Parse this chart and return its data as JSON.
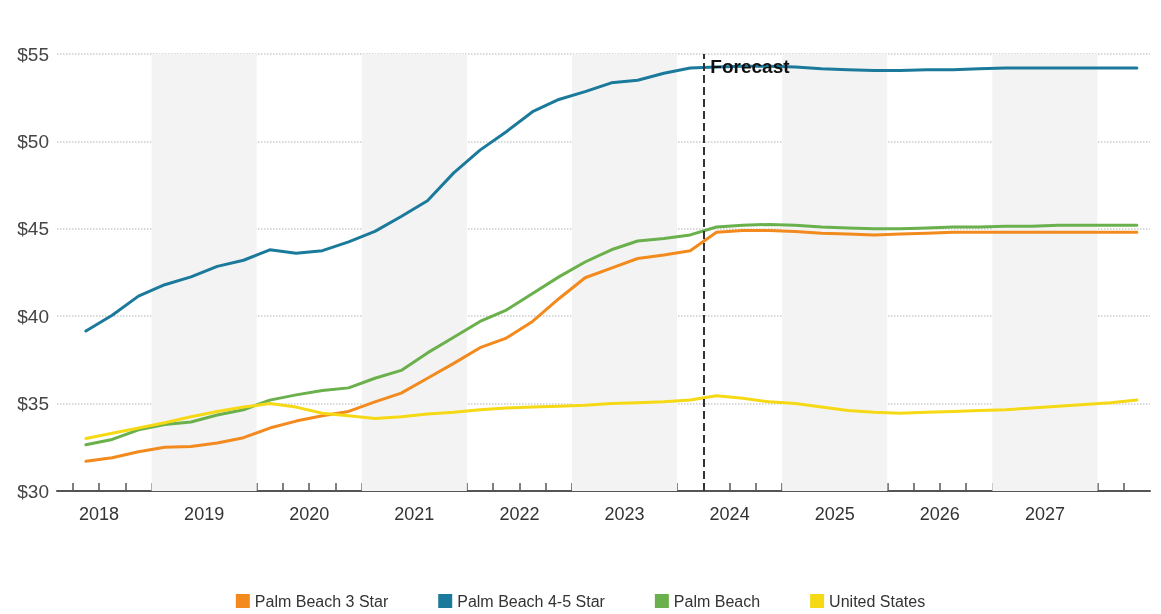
{
  "chart_data": {
    "type": "line",
    "x": [
      2018.375,
      2018.625,
      2018.875,
      2019.125,
      2019.375,
      2019.625,
      2019.875,
      2020.125,
      2020.375,
      2020.625,
      2020.875,
      2021.125,
      2021.375,
      2021.625,
      2021.875,
      2022.125,
      2022.375,
      2022.625,
      2022.875,
      2023.125,
      2023.375,
      2023.625,
      2023.875,
      2024.125,
      2024.375,
      2024.625,
      2024.875,
      2025.125,
      2025.375,
      2025.625,
      2025.875,
      2026.125,
      2026.375,
      2026.625,
      2026.875,
      2027.125,
      2027.375,
      2027.625,
      2027.875,
      2028.125,
      2028.375
    ],
    "series": [
      {
        "name": "Palm Beach 3 Star",
        "color": "#f28a1e",
        "values": [
          31.7,
          31.9,
          32.25,
          32.5,
          32.55,
          32.75,
          33.05,
          33.6,
          34.0,
          34.3,
          34.55,
          35.1,
          35.6,
          36.45,
          37.3,
          38.2,
          38.75,
          39.7,
          41.0,
          42.2,
          42.75,
          43.3,
          43.5,
          43.75,
          44.8,
          44.9,
          44.9,
          44.85,
          44.75,
          44.7,
          44.65,
          44.7,
          44.75,
          44.8,
          44.8,
          44.8,
          44.8,
          44.8,
          44.8,
          44.8,
          44.8
        ]
      },
      {
        "name": "Palm Beach 4-5 Star",
        "color": "#1b7a9c",
        "values": [
          39.15,
          40.05,
          41.15,
          41.8,
          42.25,
          42.85,
          43.2,
          43.8,
          43.6,
          43.75,
          44.25,
          44.85,
          45.7,
          46.6,
          48.2,
          49.5,
          50.55,
          51.7,
          52.4,
          52.85,
          53.35,
          53.5,
          53.9,
          54.2,
          54.25,
          54.3,
          54.3,
          54.25,
          54.15,
          54.1,
          54.05,
          54.05,
          54.1,
          54.1,
          54.15,
          54.2,
          54.2,
          54.2,
          54.2,
          54.2,
          54.2
        ]
      },
      {
        "name": "Palm Beach",
        "color": "#6ab04c",
        "values": [
          32.65,
          32.95,
          33.5,
          33.8,
          33.95,
          34.35,
          34.65,
          35.2,
          35.5,
          35.75,
          35.9,
          36.45,
          36.9,
          37.9,
          38.8,
          39.7,
          40.35,
          41.3,
          42.25,
          43.1,
          43.8,
          44.3,
          44.45,
          44.65,
          45.1,
          45.2,
          45.25,
          45.2,
          45.1,
          45.05,
          45.0,
          45.0,
          45.05,
          45.1,
          45.1,
          45.15,
          45.15,
          45.2,
          45.2,
          45.2,
          45.2
        ]
      },
      {
        "name": "United States",
        "color": "#f5d915",
        "values": [
          33.0,
          33.3,
          33.6,
          33.9,
          34.25,
          34.55,
          34.8,
          35.0,
          34.8,
          34.45,
          34.3,
          34.15,
          34.25,
          34.4,
          34.5,
          34.65,
          34.75,
          34.8,
          34.85,
          34.9,
          35.0,
          35.05,
          35.1,
          35.2,
          35.45,
          35.3,
          35.1,
          35.0,
          34.8,
          34.6,
          34.5,
          34.45,
          34.5,
          34.55,
          34.6,
          34.65,
          34.75,
          34.85,
          34.95,
          35.05,
          35.2
        ]
      }
    ],
    "xlim": [
      2018.1,
      2028.5
    ],
    "xticks": [
      {
        "value": 2018.25,
        "label": null
      },
      {
        "value": 2018.5,
        "label": "2018"
      },
      {
        "value": 2018.75,
        "label": null
      },
      {
        "value": 2019,
        "label": null
      },
      {
        "value": 2019.25,
        "label": null
      },
      {
        "value": 2019.5,
        "label": "2019"
      },
      {
        "value": 2019.75,
        "label": null
      },
      {
        "value": 2020,
        "label": null
      },
      {
        "value": 2020.25,
        "label": null
      },
      {
        "value": 2020.5,
        "label": "2020"
      },
      {
        "value": 2020.75,
        "label": null
      },
      {
        "value": 2021,
        "label": null
      },
      {
        "value": 2021.25,
        "label": null
      },
      {
        "value": 2021.5,
        "label": "2021"
      },
      {
        "value": 2021.75,
        "label": null
      },
      {
        "value": 2022,
        "label": null
      },
      {
        "value": 2022.25,
        "label": null
      },
      {
        "value": 2022.5,
        "label": "2022"
      },
      {
        "value": 2022.75,
        "label": null
      },
      {
        "value": 2023,
        "label": null
      },
      {
        "value": 2023.25,
        "label": null
      },
      {
        "value": 2023.5,
        "label": "2023"
      },
      {
        "value": 2023.75,
        "label": null
      },
      {
        "value": 2024,
        "label": null
      },
      {
        "value": 2024.25,
        "label": null
      },
      {
        "value": 2024.5,
        "label": "2024"
      },
      {
        "value": 2024.75,
        "label": null
      },
      {
        "value": 2025,
        "label": null
      },
      {
        "value": 2025.25,
        "label": null
      },
      {
        "value": 2025.5,
        "label": "2025"
      },
      {
        "value": 2025.75,
        "label": null
      },
      {
        "value": 2026,
        "label": null
      },
      {
        "value": 2026.25,
        "label": null
      },
      {
        "value": 2026.5,
        "label": "2026"
      },
      {
        "value": 2026.75,
        "label": null
      },
      {
        "value": 2027,
        "label": null
      },
      {
        "value": 2027.25,
        "label": null
      },
      {
        "value": 2027.5,
        "label": "2027"
      },
      {
        "value": 2027.75,
        "label": null
      },
      {
        "value": 2028,
        "label": null
      },
      {
        "value": 2028.25,
        "label": null
      }
    ],
    "ylim": [
      30,
      55
    ],
    "yticks": [
      {
        "value": 30,
        "label": "$30"
      },
      {
        "value": 35,
        "label": "$35"
      },
      {
        "value": 40,
        "label": "$40"
      },
      {
        "value": 45,
        "label": "$45"
      },
      {
        "value": 50,
        "label": "$50"
      },
      {
        "value": 55,
        "label": "$55"
      }
    ],
    "ref_lines": [
      {
        "axis": "x",
        "value": 2024.25,
        "label": "Forecast",
        "color": "#333333",
        "line_style": "dashed"
      }
    ],
    "bands": [
      {
        "axis": "x",
        "from": 2019,
        "to": 2020,
        "color": "#f3f3f3"
      },
      {
        "axis": "x",
        "from": 2021,
        "to": 2022,
        "color": "#f3f3f3"
      },
      {
        "axis": "x",
        "from": 2023,
        "to": 2024,
        "color": "#f3f3f3"
      },
      {
        "axis": "x",
        "from": 2025,
        "to": 2026,
        "color": "#f3f3f3"
      },
      {
        "axis": "x",
        "from": 2027,
        "to": 2028,
        "color": "#f3f3f3"
      }
    ],
    "grid": "y",
    "legend": "bottom",
    "marker": "none",
    "line_style": "solid"
  }
}
